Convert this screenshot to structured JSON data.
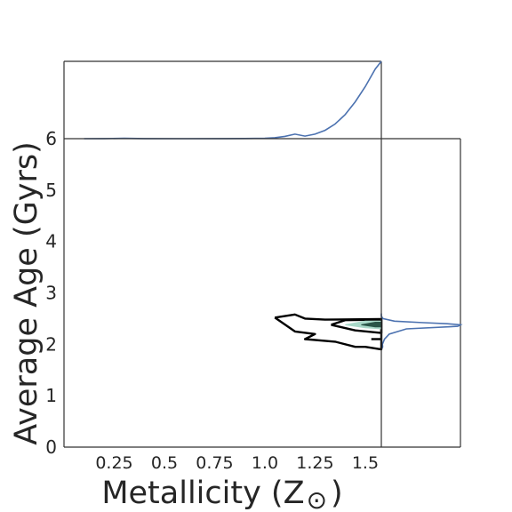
{
  "chart_data": {
    "type": "jointplot-kde",
    "xlabel": "Metallicity (Z",
    "xlabel_symbol": "⊙",
    "xlabel_close": ")",
    "ylabel": "Average Age (Gyrs)",
    "xlim": [
      0.0,
      1.58
    ],
    "ylim": [
      0,
      6
    ],
    "x_ticks": [
      {
        "value": 0.25,
        "label": "0.25"
      },
      {
        "value": 0.5,
        "label": "0.5"
      },
      {
        "value": 0.75,
        "label": "0.75"
      },
      {
        "value": 1.0,
        "label": "1.0"
      },
      {
        "value": 1.25,
        "label": "1.25"
      },
      {
        "value": 1.5,
        "label": "1.5"
      }
    ],
    "y_ticks": [
      {
        "value": 0,
        "label": "0"
      },
      {
        "value": 1,
        "label": "1"
      },
      {
        "value": 2,
        "label": "2"
      },
      {
        "value": 3,
        "label": "3"
      },
      {
        "value": 4,
        "label": "4"
      },
      {
        "value": 5,
        "label": "5"
      },
      {
        "value": 6,
        "label": "6"
      }
    ],
    "marginal_x": {
      "name": "metallicity density",
      "color": "#4c72b0",
      "x": [
        0.1,
        0.2,
        0.3,
        0.4,
        0.6,
        0.8,
        0.9,
        1.0,
        1.05,
        1.1,
        1.15,
        1.2,
        1.25,
        1.3,
        1.35,
        1.4,
        1.45,
        1.5,
        1.55,
        1.58
      ],
      "density": [
        0.0,
        0.003,
        0.015,
        0.002,
        0.0,
        0.003,
        0.006,
        0.015,
        0.04,
        0.09,
        0.18,
        0.1,
        0.18,
        0.33,
        0.58,
        0.95,
        1.45,
        2.05,
        2.75,
        3.05
      ]
    },
    "marginal_y": {
      "name": "age density",
      "color": "#4c72b0",
      "y": [
        1.9,
        1.95,
        2.0,
        2.1,
        2.2,
        2.3,
        2.35,
        2.38,
        2.4,
        2.42,
        2.45,
        2.5,
        2.55,
        2.6
      ],
      "density": [
        0.0,
        0.05,
        0.04,
        0.12,
        0.3,
        0.95,
        2.9,
        3.0,
        2.5,
        1.6,
        0.5,
        0.06,
        0.0,
        0.0
      ]
    },
    "contours": [
      {
        "level": "outer",
        "color": "#000000",
        "points": [
          [
            1.05,
            2.52
          ],
          [
            1.15,
            2.58
          ],
          [
            1.2,
            2.5
          ],
          [
            1.3,
            2.48
          ],
          [
            1.58,
            2.49
          ],
          [
            1.58,
            1.9
          ],
          [
            1.5,
            1.95
          ],
          [
            1.45,
            1.95
          ],
          [
            1.35,
            2.05
          ],
          [
            1.2,
            2.1
          ],
          [
            1.25,
            2.2
          ],
          [
            1.15,
            2.25
          ],
          [
            1.05,
            2.52
          ]
        ]
      },
      {
        "level": "middle",
        "color": "#000000",
        "points": [
          [
            1.33,
            2.38
          ],
          [
            1.4,
            2.47
          ],
          [
            1.58,
            2.48
          ],
          [
            1.58,
            2.22
          ],
          [
            1.45,
            2.27
          ],
          [
            1.33,
            2.38
          ]
        ]
      },
      {
        "level": "fill",
        "color": "#a8d8c8",
        "points": [
          [
            1.4,
            2.38
          ],
          [
            1.5,
            2.45
          ],
          [
            1.58,
            2.45
          ],
          [
            1.58,
            2.3
          ],
          [
            1.5,
            2.32
          ],
          [
            1.4,
            2.38
          ]
        ]
      },
      {
        "level": "inner",
        "color": "#2a5548",
        "points": [
          [
            1.48,
            2.38
          ],
          [
            1.55,
            2.43
          ],
          [
            1.58,
            2.43
          ],
          [
            1.58,
            2.34
          ],
          [
            1.55,
            2.34
          ],
          [
            1.48,
            2.38
          ]
        ]
      },
      {
        "level": "line",
        "color": "#000000",
        "points": [
          [
            1.53,
            2.1
          ],
          [
            1.58,
            2.1
          ]
        ]
      }
    ],
    "grid": false
  }
}
